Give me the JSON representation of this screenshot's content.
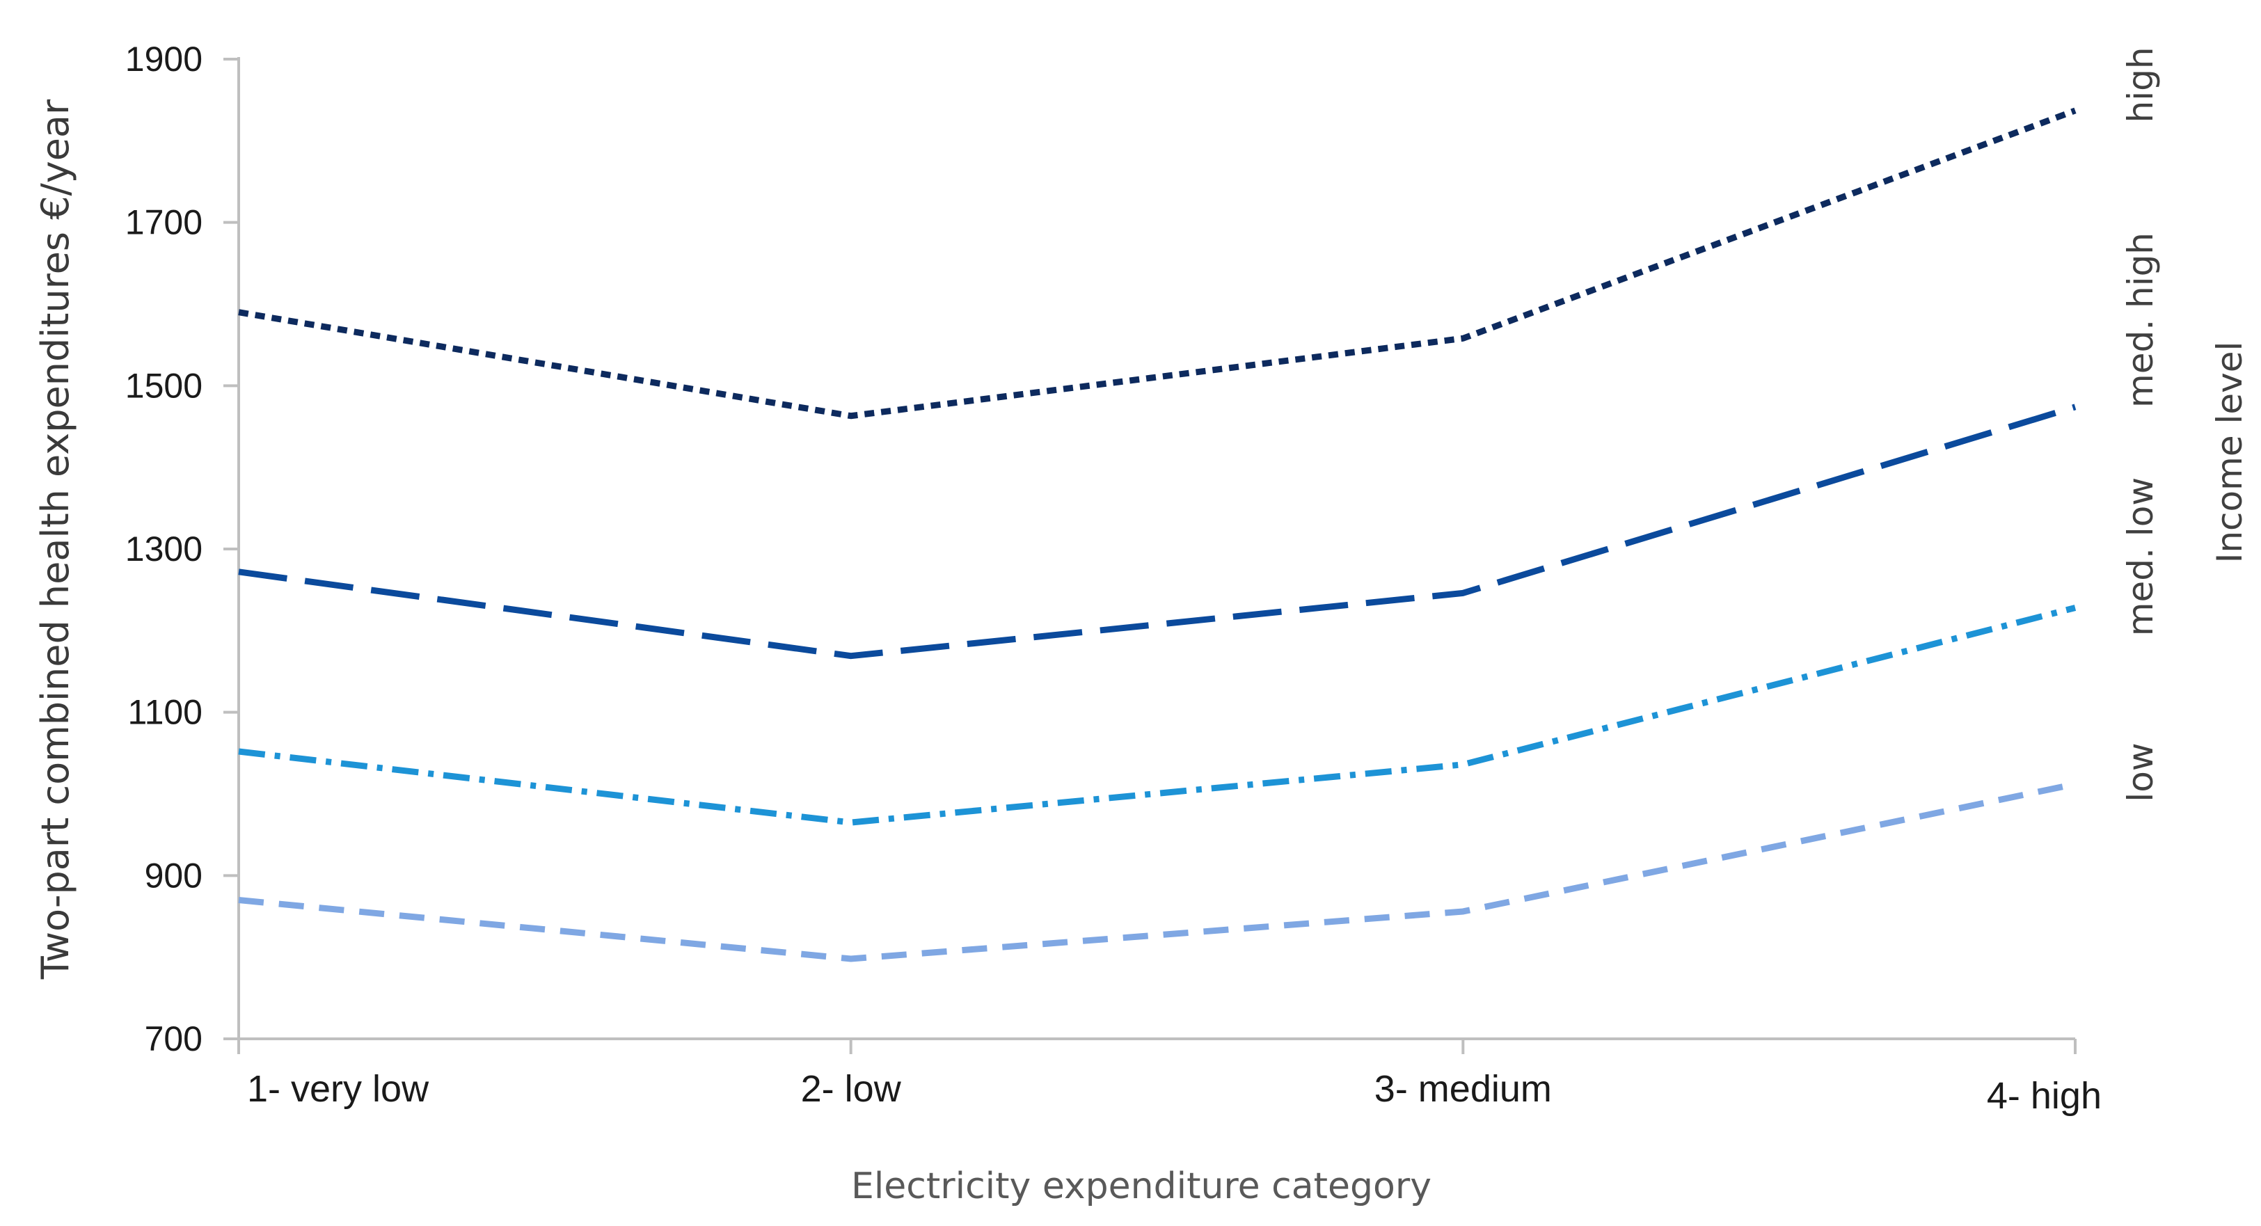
{
  "chart_data": {
    "type": "line",
    "title": "",
    "xlabel": "Electricity expenditure category",
    "ylabel": "Two-part combined health expenditures €/year",
    "ylim": [
      700,
      1900
    ],
    "yticks": [
      700,
      900,
      1100,
      1300,
      1500,
      1700,
      1900
    ],
    "categories": [
      "1- very low",
      "2- low",
      "3- medium",
      "4- high"
    ],
    "legend_title": "Income level",
    "legend_placement": "right",
    "series": [
      {
        "name": "high",
        "values": [
          1590,
          1463,
          1558,
          1837
        ],
        "color": "#0d2a5e",
        "dash": "dotted"
      },
      {
        "name": "med. high",
        "values": [
          1272,
          1169,
          1246,
          1474
        ],
        "color": "#0b4a9c",
        "dash": "long-dash"
      },
      {
        "name": "med. low",
        "values": [
          1052,
          965,
          1036,
          1228
        ],
        "color": "#1d93d6",
        "dash": "dash-dot"
      },
      {
        "name": "low",
        "values": [
          870,
          798,
          856,
          1012
        ],
        "color": "#7fa7e3",
        "dash": "dash"
      }
    ]
  }
}
